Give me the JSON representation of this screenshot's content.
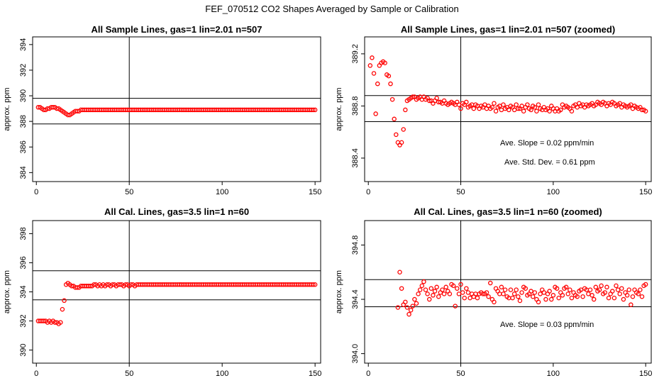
{
  "main_title": "FEF_070512  CO2 Shapes Averaged by Sample or Calibration",
  "colors": {
    "points": "#ff0000",
    "axes": "#000000",
    "background": "#ffffff"
  },
  "chart_data": [
    {
      "type": "scatter",
      "title": "All Sample Lines, gas=1 lin=2.01 n=507",
      "xlabel": "",
      "ylabel": "approx. ppm",
      "xlim": [
        -2,
        153
      ],
      "ylim": [
        383.3,
        394.6
      ],
      "xticks": [
        "0",
        "50",
        "100",
        "150"
      ],
      "yticks": [
        "384",
        "386",
        "388",
        "390",
        "392",
        "394"
      ],
      "hlines": [
        389.8,
        387.8
      ],
      "vline": 50,
      "series": [
        {
          "x_start": 1,
          "x_end": 150,
          "values": [
            389.1,
            389.1,
            389.0,
            388.9,
            388.9,
            389.0,
            389.0,
            389.1,
            389.1,
            389.1,
            389.0,
            389.0,
            388.9,
            388.8,
            388.7,
            388.6,
            388.5,
            388.5,
            388.6,
            388.7,
            388.8,
            388.8,
            388.8,
            388.9,
            388.9,
            388.9,
            388.9,
            388.9,
            388.9,
            388.9,
            388.9,
            388.9,
            388.9,
            388.9,
            388.9,
            388.9,
            388.9,
            388.9,
            388.9,
            388.9,
            388.9,
            388.9,
            388.9,
            388.9,
            388.9,
            388.9,
            388.9,
            388.9,
            388.9,
            388.9,
            388.9,
            388.9,
            388.9,
            388.9,
            388.9,
            388.9,
            388.9,
            388.9,
            388.9,
            388.9,
            388.9,
            388.9,
            388.9,
            388.9,
            388.9,
            388.9,
            388.9,
            388.9,
            388.9,
            388.9,
            388.9,
            388.9,
            388.9,
            388.9,
            388.9,
            388.9,
            388.9,
            388.9,
            388.9,
            388.9,
            388.9,
            388.9,
            388.9,
            388.9,
            388.9,
            388.9,
            388.9,
            388.9,
            388.9,
            388.9,
            388.9,
            388.9,
            388.9,
            388.9,
            388.9,
            388.9,
            388.9,
            388.9,
            388.9,
            388.9,
            388.9,
            388.9,
            388.9,
            388.9,
            388.9,
            388.9,
            388.9,
            388.9,
            388.9,
            388.9,
            388.9,
            388.9,
            388.9,
            388.9,
            388.9,
            388.9,
            388.9,
            388.9,
            388.9,
            388.9,
            388.9,
            388.9,
            388.9,
            388.9,
            388.9,
            388.9,
            388.9,
            388.9,
            388.9,
            388.9,
            388.9,
            388.9,
            388.9,
            388.9,
            388.9,
            388.9,
            388.9,
            388.9,
            388.9,
            388.9,
            388.9,
            388.9,
            388.9,
            388.9,
            388.9,
            388.9,
            388.9,
            388.9,
            388.9,
            388.9
          ]
        }
      ]
    },
    {
      "type": "scatter",
      "title": "All Sample Lines, gas=1 lin=2.01 n=507 (zoomed)",
      "xlabel": "",
      "ylabel": "approx. ppm",
      "xlim": [
        -2,
        153
      ],
      "ylim": [
        388.22,
        389.33
      ],
      "xticks": [
        "0",
        "50",
        "100",
        "150"
      ],
      "yticks": [
        "388.4",
        "388.8",
        "389.2"
      ],
      "hlines": [
        388.88,
        388.68
      ],
      "vline": 50,
      "annotations": [
        "Ave. Slope =  0.02  ppm/min",
        "Ave. Std. Dev. =  0.61  ppm"
      ],
      "series": [
        {
          "x_start": 1,
          "x_end": 150,
          "values": [
            389.11,
            389.17,
            389.05,
            388.74,
            388.97,
            389.11,
            389.13,
            389.14,
            389.13,
            389.04,
            389.03,
            388.97,
            388.85,
            388.7,
            388.58,
            388.52,
            388.5,
            388.52,
            388.62,
            388.77,
            388.84,
            388.85,
            388.86,
            388.87,
            388.87,
            388.85,
            388.86,
            388.87,
            388.85,
            388.87,
            388.85,
            388.86,
            388.84,
            388.84,
            388.82,
            388.84,
            388.86,
            388.83,
            388.83,
            388.82,
            388.84,
            388.82,
            388.81,
            388.82,
            388.83,
            388.82,
            388.81,
            388.83,
            388.81,
            388.78,
            388.82,
            388.81,
            388.83,
            388.79,
            388.8,
            388.81,
            388.78,
            388.81,
            388.8,
            388.78,
            388.8,
            388.79,
            388.81,
            388.78,
            388.8,
            388.78,
            388.79,
            388.82,
            388.76,
            388.79,
            388.8,
            388.77,
            388.81,
            388.78,
            388.79,
            388.77,
            388.8,
            388.79,
            388.77,
            388.81,
            388.78,
            388.78,
            388.8,
            388.76,
            388.79,
            388.81,
            388.78,
            388.77,
            388.8,
            388.79,
            388.76,
            388.81,
            388.78,
            388.77,
            388.79,
            388.77,
            388.78,
            388.76,
            388.8,
            388.78,
            388.76,
            388.78,
            388.76,
            388.77,
            388.81,
            388.79,
            388.8,
            388.79,
            388.78,
            388.76,
            388.8,
            388.81,
            388.79,
            388.82,
            388.8,
            388.81,
            388.79,
            388.81,
            388.8,
            388.81,
            388.82,
            388.8,
            388.81,
            388.83,
            388.82,
            388.81,
            388.83,
            388.82,
            388.8,
            388.82,
            388.81,
            388.83,
            388.82,
            388.8,
            388.81,
            388.82,
            388.79,
            388.81,
            388.8,
            388.79,
            388.8,
            388.81,
            388.78,
            388.8,
            388.79,
            388.78,
            388.79,
            388.77,
            388.77,
            388.76
          ]
        }
      ]
    },
    {
      "type": "scatter",
      "title": "All Cal. Lines, gas=3.5 lin=1 n=60",
      "xlabel": "",
      "ylabel": "approx. ppm",
      "xlim": [
        -2,
        153
      ],
      "ylim": [
        389.1,
        398.9
      ],
      "xticks": [
        "0",
        "50",
        "100",
        "150"
      ],
      "yticks": [
        "390",
        "392",
        "394",
        "396",
        "398"
      ],
      "hlines": [
        395.45,
        393.45
      ],
      "vline": 50,
      "series": [
        {
          "x_start": 1,
          "x_end": 150,
          "values": [
            392.0,
            392.0,
            392.0,
            392.0,
            392.0,
            391.9,
            392.0,
            391.9,
            392.0,
            391.9,
            391.9,
            391.8,
            391.9,
            392.8,
            393.4,
            394.5,
            394.6,
            394.5,
            394.4,
            394.4,
            394.3,
            394.3,
            394.3,
            394.4,
            394.4,
            394.4,
            394.4,
            394.4,
            394.4,
            394.4,
            394.5,
            394.5,
            394.4,
            394.5,
            394.4,
            394.5,
            394.4,
            394.5,
            394.5,
            394.4,
            394.5,
            394.5,
            394.4,
            394.5,
            394.5,
            394.5,
            394.4,
            394.5,
            394.5,
            394.4,
            394.5,
            394.5,
            394.4,
            394.5,
            394.5,
            394.5,
            394.5,
            394.5,
            394.5,
            394.5,
            394.5,
            394.5,
            394.5,
            394.5,
            394.5,
            394.5,
            394.5,
            394.5,
            394.5,
            394.5,
            394.5,
            394.5,
            394.5,
            394.5,
            394.5,
            394.5,
            394.5,
            394.5,
            394.5,
            394.5,
            394.5,
            394.5,
            394.5,
            394.5,
            394.5,
            394.5,
            394.5,
            394.5,
            394.5,
            394.5,
            394.5,
            394.5,
            394.5,
            394.5,
            394.5,
            394.5,
            394.5,
            394.5,
            394.5,
            394.5,
            394.5,
            394.5,
            394.5,
            394.5,
            394.5,
            394.5,
            394.5,
            394.5,
            394.5,
            394.5,
            394.5,
            394.5,
            394.5,
            394.5,
            394.5,
            394.5,
            394.5,
            394.5,
            394.5,
            394.5,
            394.5,
            394.5,
            394.5,
            394.5,
            394.5,
            394.5,
            394.5,
            394.5,
            394.5,
            394.5,
            394.5,
            394.5,
            394.5,
            394.5,
            394.5,
            394.5,
            394.5,
            394.5,
            394.5,
            394.5,
            394.5,
            394.5,
            394.5,
            394.5,
            394.5,
            394.5,
            394.5,
            394.5,
            394.5,
            394.5
          ]
        }
      ]
    },
    {
      "type": "scatter",
      "title": "All Cal. Lines, gas=3.5 lin=1 n=60 (zoomed)",
      "xlabel": "",
      "ylabel": "approx. ppm",
      "xlim": [
        -2,
        153
      ],
      "ylim": [
        393.93,
        394.98
      ],
      "xticks": [
        "0",
        "50",
        "100",
        "150"
      ],
      "yticks": [
        "394.0",
        "394.4",
        "394.8"
      ],
      "hlines": [
        394.545,
        394.345
      ],
      "vline": 50,
      "annotations": [
        "Ave. Slope =  0.03  ppm/min"
      ],
      "series": [
        {
          "x_start": 16,
          "x_end": 150,
          "values": [
            394.34,
            394.6,
            394.48,
            394.36,
            394.38,
            394.34,
            394.29,
            394.32,
            394.35,
            394.4,
            394.37,
            394.44,
            394.47,
            394.5,
            394.53,
            394.47,
            394.44,
            394.4,
            394.48,
            394.43,
            394.46,
            394.49,
            394.42,
            394.45,
            394.47,
            394.44,
            394.49,
            394.46,
            394.44,
            394.51,
            394.5,
            394.35,
            394.48,
            394.44,
            394.51,
            394.45,
            394.41,
            394.48,
            394.45,
            394.41,
            394.44,
            394.42,
            394.44,
            394.41,
            394.44,
            394.45,
            394.44,
            394.44,
            394.45,
            394.42,
            394.52,
            394.4,
            394.38,
            394.48,
            394.46,
            394.44,
            394.49,
            394.44,
            394.47,
            394.42,
            394.41,
            394.47,
            394.41,
            394.44,
            394.47,
            394.42,
            394.39,
            394.45,
            394.49,
            394.48,
            394.43,
            394.44,
            394.46,
            394.42,
            394.45,
            394.4,
            394.38,
            394.44,
            394.47,
            394.45,
            394.4,
            394.44,
            394.46,
            394.4,
            394.43,
            394.49,
            394.48,
            394.41,
            394.45,
            394.43,
            394.48,
            394.49,
            394.44,
            394.47,
            394.41,
            394.45,
            394.43,
            394.42,
            394.46,
            394.47,
            394.42,
            394.48,
            394.47,
            394.44,
            394.47,
            394.43,
            394.4,
            394.49,
            394.46,
            394.47,
            394.5,
            394.44,
            394.45,
            394.49,
            394.41,
            394.44,
            394.46,
            394.41,
            394.5,
            394.47,
            394.44,
            394.48,
            394.4,
            394.45,
            394.43,
            394.47,
            394.36,
            394.42,
            394.47,
            394.45,
            394.44,
            394.47,
            394.42,
            394.5,
            394.51
          ]
        }
      ]
    }
  ]
}
